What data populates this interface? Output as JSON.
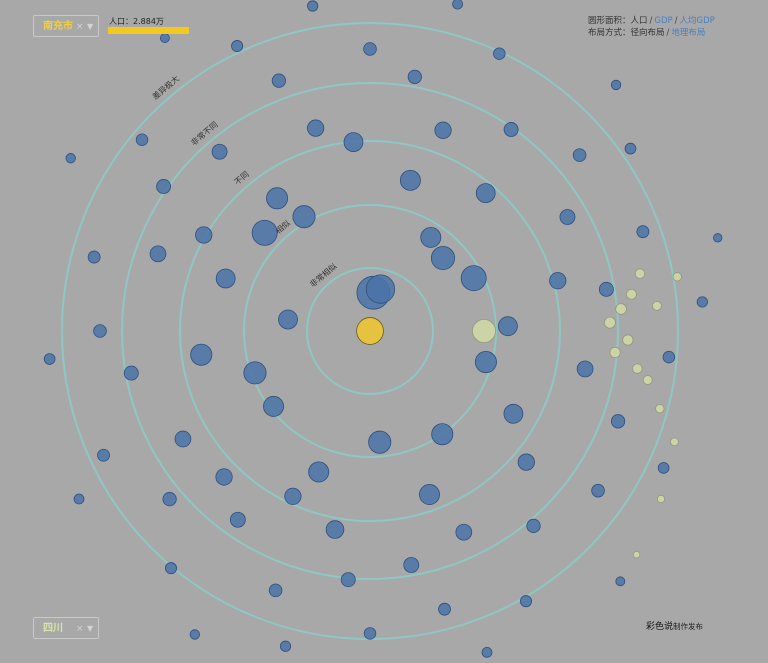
{
  "selected_city": "南充市",
  "selected_province": "四川",
  "clear_symbol": "×",
  "dropdown_symbol": "▼",
  "population_label": "人口：",
  "population_value": "2.884万",
  "controls": {
    "area_label": "圆形面积：",
    "area_options": [
      "人口",
      "GDP",
      "人均GDP"
    ],
    "area_selected": "人口",
    "layout_label": "布局方式：",
    "layout_options": [
      "径向布局",
      "地理布局"
    ],
    "layout_selected": "径向布局",
    "separator": "/"
  },
  "credit_main": "彩色说",
  "credit_sub": "制作发布",
  "colors": {
    "background": "#a8a8a8",
    "ring": "#8fc7c3",
    "other_province": "#4a73a8",
    "same_province": "#cdd6a6",
    "selected": "#e8c43a"
  },
  "chart_data": {
    "type": "scatter",
    "layout": "radial",
    "title": "",
    "ring_labels": [
      "非常相似",
      "相似",
      "不同",
      "非常不同",
      "差异极大"
    ],
    "series": [
      {
        "values": [
          [
            0,
            0,
            80
          ]
        ]
      },
      {
        "values": [
          [
            0.32,
            5,
            120
          ],
          [
            0.36,
            14,
            90
          ],
          [
            0.69,
            278,
            40
          ],
          [
            0.86,
            45,
            60
          ],
          [
            0.93,
            33,
            45
          ],
          [
            0.93,
            175,
            55
          ],
          [
            0.97,
            63,
            70
          ],
          [
            1.0,
            105,
            50
          ],
          [
            1.02,
            232,
            45
          ],
          [
            1.02,
            250,
            55
          ],
          [
            1.05,
            145,
            50
          ],
          [
            1.1,
            330,
            55
          ],
          [
            1.15,
            88,
            40
          ],
          [
            1.2,
            313,
            70
          ],
          [
            1.25,
            200,
            45
          ],
          [
            1.28,
            290,
            40
          ],
          [
            1.3,
            15,
            45
          ],
          [
            1.35,
            325,
            50
          ],
          [
            1.38,
            120,
            40
          ],
          [
            1.42,
            262,
            50
          ],
          [
            1.45,
            160,
            45
          ],
          [
            1.5,
            40,
            40
          ],
          [
            1.52,
            205,
            30
          ],
          [
            1.58,
            355,
            40
          ],
          [
            1.6,
            300,
            30
          ],
          [
            1.62,
            75,
            30
          ],
          [
            1.68,
            190,
            35
          ],
          [
            1.7,
            130,
            30
          ],
          [
            1.72,
            225,
            30
          ],
          [
            1.75,
            345,
            30
          ],
          [
            1.78,
            20,
            30
          ],
          [
            1.8,
            240,
            28
          ],
          [
            1.82,
            100,
            28
          ],
          [
            1.85,
            155,
            28
          ],
          [
            1.88,
            290,
            28
          ],
          [
            1.9,
            60,
            25
          ],
          [
            1.92,
            215,
            25
          ],
          [
            1.95,
            320,
            25
          ],
          [
            1.98,
            170,
            25
          ],
          [
            2.0,
            80,
            22
          ],
          [
            2.02,
            260,
            22
          ],
          [
            2.05,
            35,
            22
          ],
          [
            2.08,
            185,
            22
          ],
          [
            2.1,
            305,
            22
          ],
          [
            2.12,
            140,
            20
          ],
          [
            2.15,
            10,
            20
          ],
          [
            2.18,
            230,
            20
          ],
          [
            2.2,
            110,
            20
          ],
          [
            2.22,
            340,
            20
          ],
          [
            2.25,
            270,
            18
          ],
          [
            2.28,
            50,
            18
          ],
          [
            2.3,
            200,
            18
          ],
          [
            2.32,
            125,
            18
          ],
          [
            2.35,
            0,
            18
          ],
          [
            2.38,
            285,
            16
          ],
          [
            2.4,
            165,
            16
          ],
          [
            2.42,
            70,
            16
          ],
          [
            2.45,
            245,
            16
          ],
          [
            2.48,
            310,
            15
          ],
          [
            2.5,
            95,
            15
          ],
          [
            2.52,
            180,
            15
          ],
          [
            2.55,
            25,
            15
          ],
          [
            2.58,
            220,
            14
          ],
          [
            2.6,
            150,
            14
          ],
          [
            2.62,
            335,
            14
          ],
          [
            2.65,
            55,
            13
          ],
          [
            2.68,
            265,
            13
          ],
          [
            2.7,
            115,
            13
          ],
          [
            2.72,
            195,
            12
          ],
          [
            2.75,
            350,
            12
          ],
          [
            2.78,
            85,
            12
          ],
          [
            2.8,
            240,
            11
          ],
          [
            2.82,
            15,
            11
          ],
          [
            2.85,
            160,
            11
          ],
          [
            2.88,
            300,
            10
          ],
          [
            2.9,
            45,
            10
          ],
          [
            2.92,
            210,
            10
          ],
          [
            2.95,
            135,
            9
          ],
          [
            2.98,
            325,
            9
          ],
          [
            3.0,
            75,
            8
          ]
        ]
      },
      {
        "values": [
          [
            0.95,
            90,
            60
          ],
          [
            2.0,
            88,
            14
          ],
          [
            2.1,
            85,
            13
          ],
          [
            2.05,
            95,
            12
          ],
          [
            2.15,
            92,
            12
          ],
          [
            2.2,
            82,
            11
          ],
          [
            2.25,
            98,
            10
          ],
          [
            2.3,
            78,
            10
          ],
          [
            2.35,
            100,
            9
          ],
          [
            2.4,
            85,
            9
          ],
          [
            2.5,
            105,
            8
          ],
          [
            2.6,
            80,
            8
          ],
          [
            2.7,
            110,
            7
          ],
          [
            2.8,
            120,
            6
          ],
          [
            2.9,
            130,
            5
          ]
        ]
      }
    ]
  }
}
